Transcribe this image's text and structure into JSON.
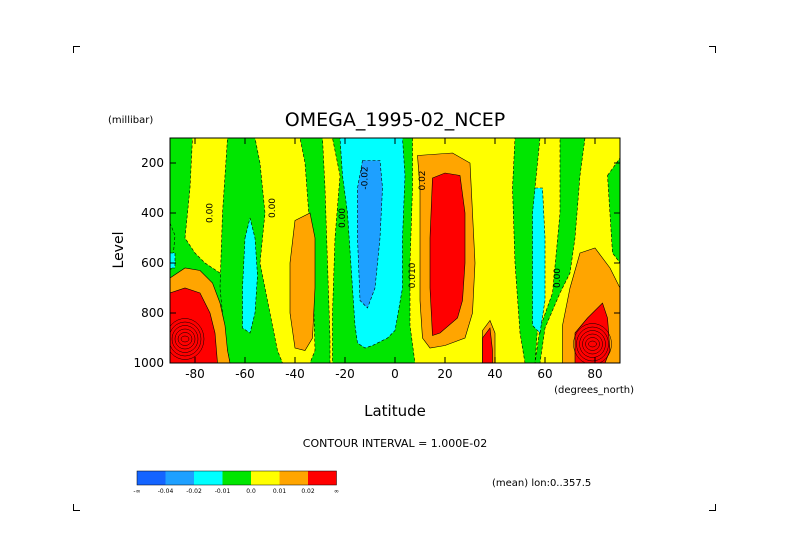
{
  "chart_data": {
    "type": "heatmap",
    "title": "OMEGA_1995-02_NCEP",
    "xlabel": "Latitude",
    "ylabel": "Level",
    "x_unit": "(degrees_north)",
    "y_unit": "(millibar)",
    "xlim": [
      -90,
      90
    ],
    "ylim": [
      1000,
      100
    ],
    "x_ticks": [
      {
        "value": -80,
        "label": "-80"
      },
      {
        "value": -60,
        "label": "-60"
      },
      {
        "value": -40,
        "label": "-40"
      },
      {
        "value": -20,
        "label": "-20"
      },
      {
        "value": 0,
        "label": "0"
      },
      {
        "value": 20,
        "label": "20"
      },
      {
        "value": 40,
        "label": "40"
      },
      {
        "value": 60,
        "label": "60"
      },
      {
        "value": 80,
        "label": "80"
      }
    ],
    "y_ticks": [
      {
        "value": 200,
        "label": "200"
      },
      {
        "value": 400,
        "label": "400"
      },
      {
        "value": 600,
        "label": "600"
      },
      {
        "value": 800,
        "label": "800"
      },
      {
        "value": 1000,
        "label": "1000"
      }
    ],
    "contour_interval_text": "CONTOUR INTERVAL = 1.000E-02",
    "mean_text": "(mean) lon:0..357.5",
    "colorbar": {
      "colors": [
        "#1464ff",
        "#1ea0ff",
        "#00ffff",
        "#00e600",
        "#ffff00",
        "#ffa500",
        "#ff0000"
      ],
      "labels": [
        "-∞",
        "-0.04",
        "-0.02",
        "-0.01",
        "0.0",
        "0.01",
        "0.02",
        "∞"
      ]
    },
    "contour_labels": [
      {
        "text": "0.00",
        "x": -73,
        "y": 400
      },
      {
        "text": "0.00",
        "x": -48,
        "y": 380
      },
      {
        "text": "0.00",
        "x": -20,
        "y": 420
      },
      {
        "text": "-0.02",
        "x": -11,
        "y": 260
      },
      {
        "text": "0.02",
        "x": 12,
        "y": 270
      },
      {
        "text": "0.010",
        "x": 8,
        "y": 650
      },
      {
        "text": "0.00",
        "x": 66,
        "y": 660
      }
    ],
    "regions": [
      {
        "level": "zero-pos",
        "color": "#ffff00",
        "points": [
          [
            -90,
            100
          ],
          [
            90,
            100
          ],
          [
            90,
            1000
          ],
          [
            -90,
            1000
          ]
        ]
      },
      {
        "level": "neg-0.01",
        "color": "#00e600",
        "points": [
          [
            -90,
            100
          ],
          [
            -81,
            100
          ],
          [
            -82,
            300
          ],
          [
            -84,
            500
          ],
          [
            -80,
            560
          ],
          [
            -76,
            600
          ],
          [
            -70,
            640
          ],
          [
            -67,
            700
          ],
          [
            -62,
            780
          ],
          [
            -58,
            900
          ],
          [
            -60,
            1000
          ],
          [
            -90,
            1000
          ]
        ]
      },
      {
        "level": "neg-0.01",
        "color": "#00e600",
        "points": [
          [
            -67,
            100
          ],
          [
            -56,
            100
          ],
          [
            -54,
            200
          ],
          [
            -52,
            400
          ],
          [
            -54,
            600
          ],
          [
            -50,
            800
          ],
          [
            -47,
            950
          ],
          [
            -45,
            1000
          ],
          [
            -66,
            1000
          ],
          [
            -68,
            900
          ],
          [
            -70,
            700
          ],
          [
            -69,
            400
          ]
        ]
      },
      {
        "level": "neg-0.01",
        "color": "#00e600",
        "points": [
          [
            -38,
            100
          ],
          [
            -29,
            100
          ],
          [
            -28,
            300
          ],
          [
            -27,
            600
          ],
          [
            -26,
            900
          ],
          [
            -26,
            1000
          ],
          [
            -34,
            1000
          ],
          [
            -32,
            950
          ],
          [
            -33,
            600
          ],
          [
            -36,
            200
          ]
        ]
      },
      {
        "level": "neg-0.01",
        "color": "#00e600",
        "points": [
          [
            -25,
            100
          ],
          [
            7,
            100
          ],
          [
            7,
            300
          ],
          [
            6,
            600
          ],
          [
            6,
            850
          ],
          [
            8,
            1000
          ],
          [
            -25,
            1000
          ],
          [
            -25,
            800
          ],
          [
            -24,
            500
          ],
          [
            -22,
            250
          ]
        ]
      },
      {
        "level": "neg-0.01",
        "color": "#00e600",
        "points": [
          [
            48,
            100
          ],
          [
            58,
            100
          ],
          [
            56,
            300
          ],
          [
            56,
            600
          ],
          [
            57,
            860
          ],
          [
            56,
            1000
          ],
          [
            52,
            1000
          ],
          [
            50,
            880
          ],
          [
            48,
            600
          ],
          [
            47,
            300
          ]
        ]
      },
      {
        "level": "neg-0.01",
        "color": "#00e600",
        "points": [
          [
            66,
            100
          ],
          [
            76,
            100
          ],
          [
            74,
            250
          ],
          [
            72,
            500
          ],
          [
            70,
            640
          ],
          [
            66,
            720
          ],
          [
            60,
            860
          ],
          [
            58,
            1000
          ],
          [
            56,
            1000
          ],
          [
            58,
            860
          ],
          [
            63,
            720
          ],
          [
            66,
            400
          ]
        ]
      },
      {
        "level": "neg-0.01",
        "color": "#00e600",
        "points": [
          [
            85,
            250
          ],
          [
            90,
            180
          ],
          [
            90,
            600
          ],
          [
            87,
            560
          ]
        ]
      },
      {
        "level": "neg-0.01",
        "color": "#00e600",
        "points": [
          [
            -90,
            440
          ],
          [
            -88,
            490
          ],
          [
            -89,
            600
          ],
          [
            -90,
            640
          ]
        ]
      },
      {
        "level": "neg-0.02",
        "color": "#00ffff",
        "points": [
          [
            -22,
            100
          ],
          [
            3,
            100
          ],
          [
            4,
            250
          ],
          [
            3,
            500
          ],
          [
            3,
            700
          ],
          [
            0,
            870
          ],
          [
            -3,
            900
          ],
          [
            -9,
            930
          ],
          [
            -12,
            940
          ],
          [
            -15,
            920
          ],
          [
            -16,
            850
          ],
          [
            -17,
            700
          ],
          [
            -19,
            400
          ],
          [
            -21,
            250
          ]
        ]
      },
      {
        "level": "neg-0.02",
        "color": "#00ffff",
        "points": [
          [
            -60,
            500
          ],
          [
            -58,
            420
          ],
          [
            -56,
            500
          ],
          [
            -55,
            650
          ],
          [
            -56,
            800
          ],
          [
            -58,
            880
          ],
          [
            -61,
            860
          ],
          [
            -61,
            700
          ]
        ]
      },
      {
        "level": "neg-0.02",
        "color": "#00ffff",
        "points": [
          [
            56,
            300
          ],
          [
            59,
            300
          ],
          [
            60,
            500
          ],
          [
            60,
            750
          ],
          [
            58,
            880
          ],
          [
            55,
            850
          ],
          [
            55,
            600
          ],
          [
            55,
            400
          ]
        ]
      },
      {
        "level": "neg-0.02",
        "color": "#00ffff",
        "points": [
          [
            -90,
            560
          ],
          [
            -88,
            560
          ],
          [
            -88,
            620
          ],
          [
            -90,
            620
          ]
        ]
      },
      {
        "level": "neg-0.04",
        "color": "#1ea0ff",
        "points": [
          [
            -13,
            190
          ],
          [
            -6,
            190
          ],
          [
            -5,
            300
          ],
          [
            -6,
            500
          ],
          [
            -8,
            700
          ],
          [
            -11,
            780
          ],
          [
            -14,
            750
          ],
          [
            -15,
            500
          ],
          [
            -15,
            300
          ]
        ]
      },
      {
        "level": "pos-0.01",
        "color": "#ffa500",
        "points": [
          [
            -40,
            430
          ],
          [
            -34,
            400
          ],
          [
            -32,
            500
          ],
          [
            -32,
            700
          ],
          [
            -33,
            900
          ],
          [
            -36,
            950
          ],
          [
            -40,
            940
          ],
          [
            -42,
            800
          ],
          [
            -42,
            600
          ]
        ]
      },
      {
        "level": "pos-0.01",
        "color": "#ffa500",
        "points": [
          [
            -90,
            660
          ],
          [
            -84,
            620
          ],
          [
            -78,
            630
          ],
          [
            -73,
            680
          ],
          [
            -70,
            760
          ],
          [
            -68,
            850
          ],
          [
            -67,
            950
          ],
          [
            -66,
            1000
          ],
          [
            -90,
            1000
          ]
        ]
      },
      {
        "level": "pos-0.01",
        "color": "#ffa500",
        "points": [
          [
            9,
            170
          ],
          [
            23,
            160
          ],
          [
            30,
            200
          ],
          [
            31,
            400
          ],
          [
            32,
            600
          ],
          [
            31,
            800
          ],
          [
            28,
            900
          ],
          [
            20,
            930
          ],
          [
            14,
            940
          ],
          [
            11,
            900
          ],
          [
            10,
            750
          ],
          [
            10,
            500
          ],
          [
            10,
            300
          ]
        ]
      },
      {
        "level": "pos-0.01",
        "color": "#ffa500",
        "points": [
          [
            74,
            560
          ],
          [
            80,
            540
          ],
          [
            86,
            620
          ],
          [
            90,
            700
          ],
          [
            90,
            1000
          ],
          [
            67,
            1000
          ],
          [
            67,
            850
          ],
          [
            70,
            700
          ]
        ]
      },
      {
        "level": "pos-0.01",
        "color": "#ffa500",
        "points": [
          [
            35,
            870
          ],
          [
            38,
            830
          ],
          [
            40,
            880
          ],
          [
            40,
            1000
          ],
          [
            35,
            1000
          ]
        ]
      },
      {
        "level": "pos-0.02",
        "color": "#ff0000",
        "points": [
          [
            -90,
            720
          ],
          [
            -84,
            700
          ],
          [
            -78,
            720
          ],
          [
            -74,
            800
          ],
          [
            -72,
            880
          ],
          [
            -71,
            1000
          ],
          [
            -90,
            1000
          ]
        ]
      },
      {
        "level": "pos-0.02",
        "color": "#ff0000",
        "points": [
          [
            15,
            260
          ],
          [
            20,
            240
          ],
          [
            26,
            250
          ],
          [
            28,
            400
          ],
          [
            28,
            600
          ],
          [
            27,
            750
          ],
          [
            25,
            820
          ],
          [
            18,
            880
          ],
          [
            15,
            890
          ],
          [
            14,
            700
          ],
          [
            14,
            500
          ]
        ]
      },
      {
        "level": "pos-0.02",
        "color": "#ff0000",
        "points": [
          [
            72,
            880
          ],
          [
            77,
            820
          ],
          [
            83,
            760
          ],
          [
            85,
            820
          ],
          [
            86,
            950
          ],
          [
            84,
            1000
          ],
          [
            72,
            1000
          ]
        ]
      },
      {
        "level": "pos-0.02",
        "color": "#ff0000",
        "points": [
          [
            35,
            900
          ],
          [
            38,
            860
          ],
          [
            39,
            950
          ],
          [
            39,
            1000
          ],
          [
            35,
            1000
          ]
        ]
      }
    ]
  }
}
